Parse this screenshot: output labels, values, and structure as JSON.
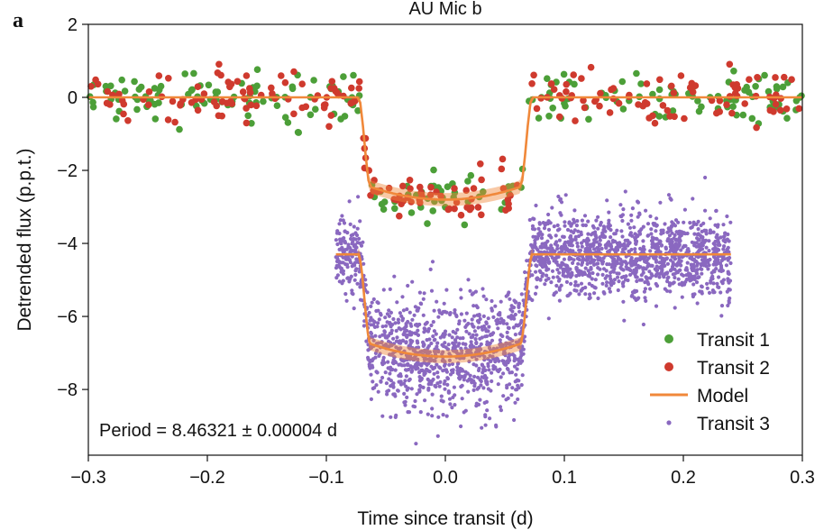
{
  "chart_data": {
    "type": "scatter",
    "panel_letter": "a",
    "title": "AU Mic b",
    "xlabel": "Time since transit (d)",
    "ylabel": "Detrended flux (p.p.t.)",
    "xlim": [
      -0.3,
      0.3
    ],
    "ylim": [
      -9.8,
      2
    ],
    "x_ticks": [
      -0.3,
      -0.2,
      -0.1,
      0.0,
      0.1,
      0.2,
      0.3
    ],
    "x_tick_labels": [
      "−0.3",
      "−0.2",
      "−0.1",
      "0.0",
      "0.1",
      "0.2",
      "0.3"
    ],
    "y_ticks": [
      2,
      0,
      -2,
      -4,
      -6,
      -8
    ],
    "y_tick_labels": [
      "2",
      "0",
      "−2",
      "−4",
      "−6",
      "−8"
    ],
    "annotation": "Period = 8.46321 ± 0.00004 d",
    "legend_position": "lower-right",
    "transit_model": {
      "ingress_start": -0.073,
      "full_start": -0.063,
      "full_end": 0.063,
      "egress_end": 0.073,
      "upper_baseline": 0.0,
      "upper_depth_center": -2.8,
      "upper_depth_edge": -2.45,
      "lower_baseline": -4.3,
      "lower_depth_center": -7.1,
      "lower_depth_edge": -6.75
    },
    "series": [
      {
        "name": "Transit 1",
        "color": "#4c9f38",
        "marker": "large-dot",
        "x_range": [
          -0.3,
          0.3
        ],
        "baseline": 0.0,
        "in_transit_level": -2.8,
        "scatter": 0.35,
        "n_points": 230
      },
      {
        "name": "Transit 2",
        "color": "#cf3a2e",
        "marker": "large-dot",
        "x_range": [
          -0.3,
          0.3
        ],
        "baseline": 0.0,
        "in_transit_level": -2.8,
        "scatter": 0.35,
        "n_points": 230
      },
      {
        "name": "Model",
        "color": "#f0883a",
        "marker": "line"
      },
      {
        "name": "Transit 3",
        "color": "#8a68c0",
        "marker": "small-dot",
        "x_range": [
          -0.092,
          0.24
        ],
        "baseline": -4.3,
        "in_transit_level": -7.1,
        "scatter": 0.55,
        "n_points": 2400
      }
    ]
  }
}
